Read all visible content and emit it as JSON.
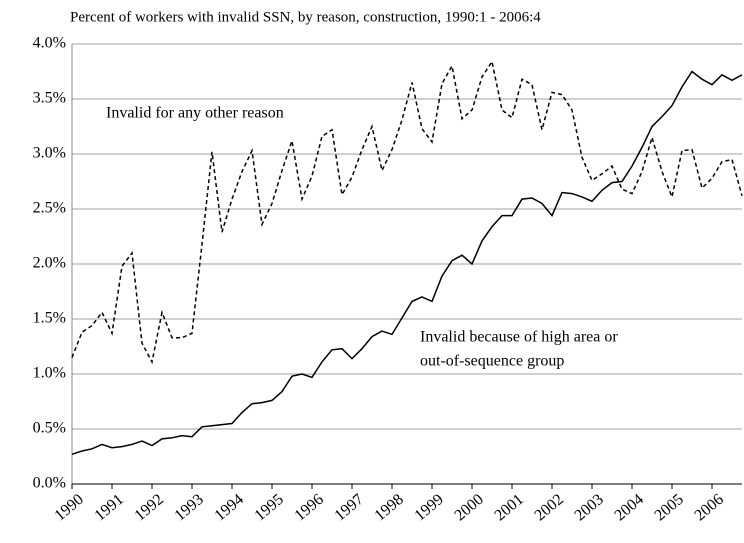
{
  "chart_data": {
    "type": "line",
    "title": "Percent of workers with invalid SSN, by reason, construction, 1990:1 - 2006:4",
    "annotations": [
      "Invalid for any other reason",
      "Invalid because of high area or",
      "out-of-sequence group"
    ],
    "categories": [
      "1990",
      null,
      null,
      null,
      "1991",
      null,
      null,
      null,
      "1992",
      null,
      null,
      null,
      "1993",
      null,
      null,
      null,
      "1994",
      null,
      null,
      null,
      "1995",
      null,
      null,
      null,
      "1996",
      null,
      null,
      null,
      "1997",
      null,
      null,
      null,
      "1998",
      null,
      null,
      null,
      "1999",
      null,
      null,
      null,
      "2000",
      null,
      null,
      null,
      "2001",
      null,
      null,
      null,
      "2002",
      null,
      null,
      null,
      "2003",
      null,
      null,
      null,
      "2004",
      null,
      null,
      null,
      "2005",
      null,
      null,
      null,
      "2006",
      null,
      null,
      null
    ],
    "series": [
      {
        "color": "#000000",
        "dashed": false,
        "values": [
          0.27,
          0.3,
          0.32,
          0.36,
          0.33,
          0.34,
          0.36,
          0.39,
          0.35,
          0.41,
          0.42,
          0.44,
          0.43,
          0.52,
          0.53,
          0.54,
          0.55,
          0.65,
          0.73,
          0.74,
          0.76,
          0.84,
          0.98,
          1.0,
          0.97,
          1.11,
          1.22,
          1.23,
          1.14,
          1.23,
          1.34,
          1.39,
          1.36,
          1.51,
          1.66,
          1.7,
          1.66,
          1.89,
          2.03,
          2.08,
          2.0,
          2.21,
          2.34,
          2.44,
          2.44,
          2.59,
          2.6,
          2.55,
          2.44,
          2.65,
          2.64,
          2.61,
          2.57,
          2.67,
          2.74,
          2.75,
          2.89,
          3.06,
          3.25,
          3.34,
          3.44,
          3.61,
          3.75,
          3.68,
          3.63,
          3.72,
          3.67,
          3.72
        ]
      },
      {
        "color": "#000000",
        "dashed": true,
        "values": [
          1.15,
          1.38,
          1.44,
          1.56,
          1.37,
          1.98,
          2.1,
          1.28,
          1.11,
          1.56,
          1.33,
          1.33,
          1.37,
          2.18,
          3.02,
          2.29,
          2.59,
          2.84,
          3.03,
          2.36,
          2.55,
          2.85,
          3.12,
          2.59,
          2.8,
          3.16,
          3.22,
          2.63,
          2.79,
          3.04,
          3.25,
          2.85,
          3.04,
          3.31,
          3.65,
          3.23,
          3.11,
          3.64,
          3.8,
          3.32,
          3.4,
          3.7,
          3.84,
          3.4,
          3.33,
          3.68,
          3.63,
          3.22,
          3.56,
          3.54,
          3.4,
          2.97,
          2.76,
          2.82,
          2.89,
          2.68,
          2.64,
          2.84,
          3.15,
          2.84,
          2.61,
          3.03,
          3.04,
          2.69,
          2.78,
          2.93,
          2.95,
          2.62
        ]
      }
    ],
    "ylim": [
      0,
      4
    ],
    "yticks": [
      {
        "value": 0,
        "label": "0.0%"
      },
      {
        "value": 0.5,
        "label": "0.5%"
      },
      {
        "value": 1,
        "label": "1.0%"
      },
      {
        "value": 1.5,
        "label": "1.5%"
      },
      {
        "value": 2,
        "label": "2.0%"
      },
      {
        "value": 2.5,
        "label": "2.5%"
      },
      {
        "value": 3,
        "label": "3.0%"
      },
      {
        "value": 3.5,
        "label": "3.5%"
      },
      {
        "value": 4,
        "label": "4.0%"
      }
    ],
    "grid": true
  }
}
